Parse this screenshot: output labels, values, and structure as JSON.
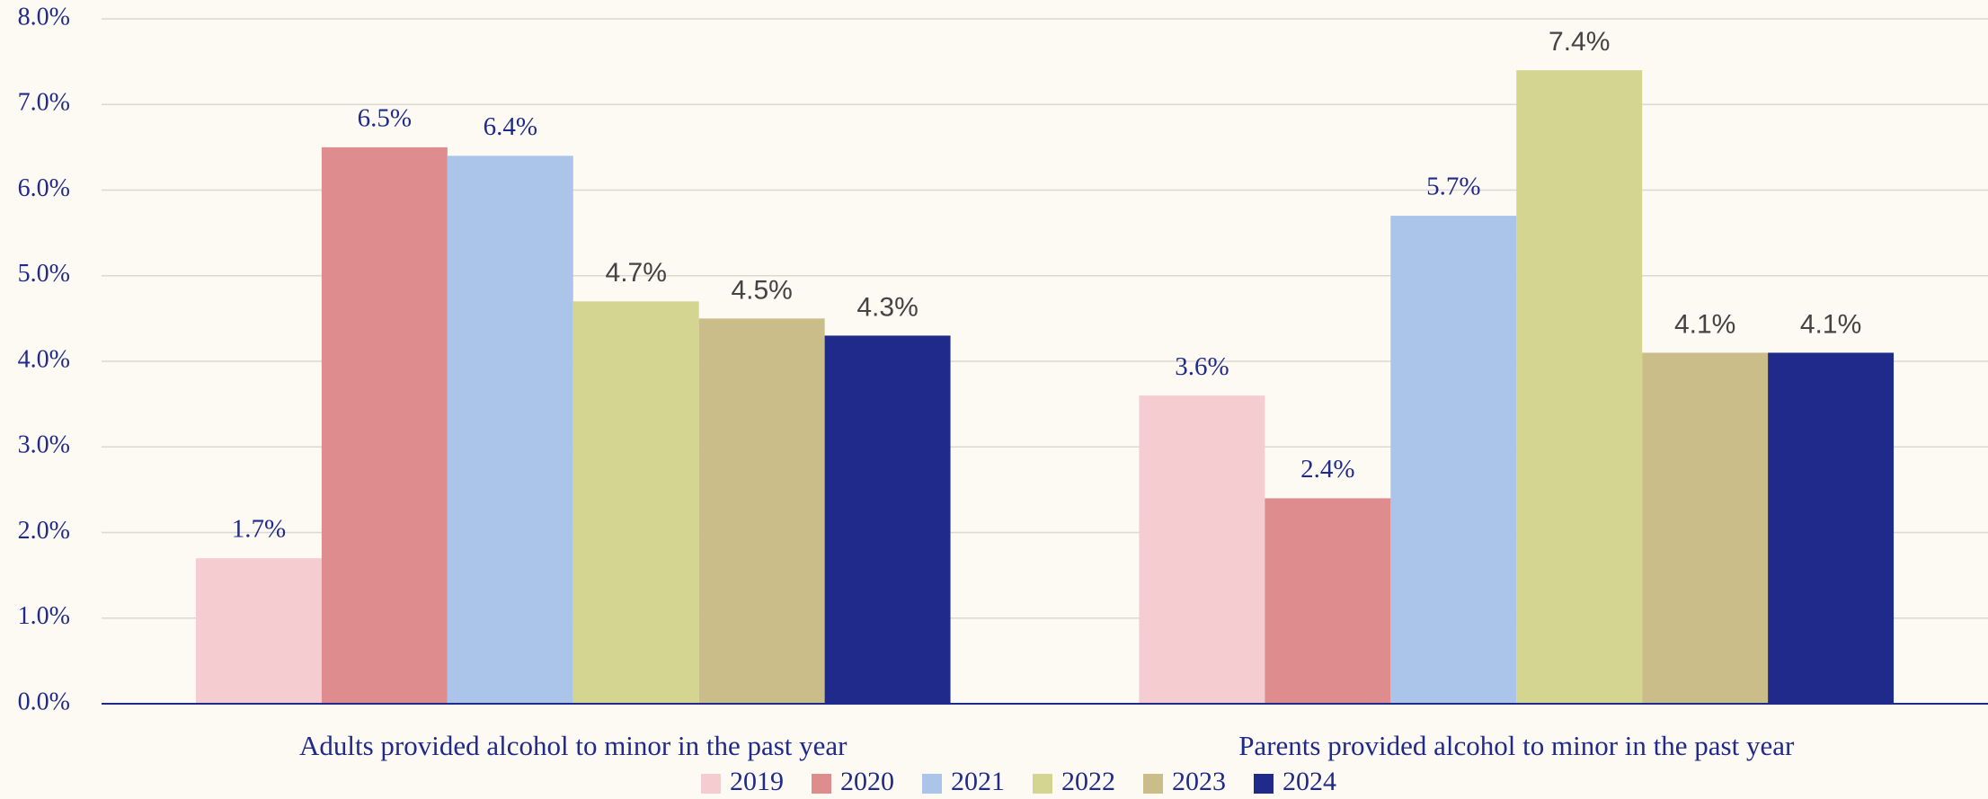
{
  "chart_data": {
    "type": "bar",
    "categories": [
      "Adults provided alcohol to minor in the past year",
      "Parents provided alcohol to minor in the past year"
    ],
    "series": [
      {
        "name": "2019",
        "color": "#f5cdd0",
        "values": [
          1.7,
          3.6
        ],
        "value_labels": [
          "1.7%",
          "3.6%"
        ]
      },
      {
        "name": "2020",
        "color": "#de8c8e",
        "values": [
          6.5,
          2.4
        ],
        "value_labels": [
          "6.5%",
          "2.4%"
        ]
      },
      {
        "name": "2021",
        "color": "#aac4ea",
        "values": [
          6.4,
          5.7
        ],
        "value_labels": [
          "6.4%",
          "5.7%"
        ]
      },
      {
        "name": "2022",
        "color": "#d3d591",
        "values": [
          4.7,
          7.4
        ],
        "value_labels": [
          "4.7%",
          "7.4%"
        ]
      },
      {
        "name": "2023",
        "color": "#cabd89",
        "values": [
          4.5,
          4.1
        ],
        "value_labels": [
          "4.5%",
          "4.1%"
        ]
      },
      {
        "name": "2024",
        "color": "#1f2a8a",
        "values": [
          4.3,
          4.1
        ],
        "value_labels": [
          "4.3%",
          "4.1%"
        ]
      }
    ],
    "ylim": [
      0,
      8
    ],
    "yticks": [
      {
        "value": 0,
        "label": "0.0%"
      },
      {
        "value": 1,
        "label": "1.0%"
      },
      {
        "value": 2,
        "label": "2.0%"
      },
      {
        "value": 3,
        "label": "3.0%"
      },
      {
        "value": 4,
        "label": "4.0%"
      },
      {
        "value": 5,
        "label": "5.0%"
      },
      {
        "value": 6,
        "label": "6.0%"
      },
      {
        "value": 7,
        "label": "7.0%"
      },
      {
        "value": 8,
        "label": "8.0%"
      }
    ],
    "grid": true,
    "legend": "bottom"
  }
}
